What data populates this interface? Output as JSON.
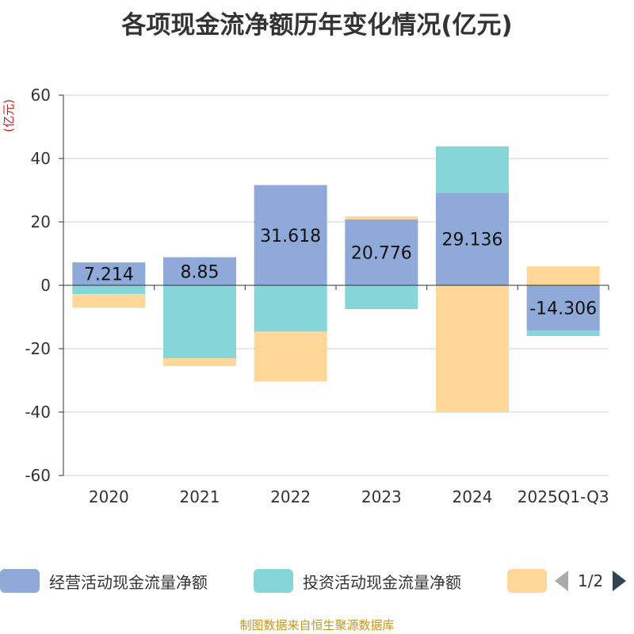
{
  "chart_data": {
    "type": "bar",
    "stacked": true,
    "title": "各项现金流净额历年变化情况(亿元)",
    "ylabel": "(亿元)",
    "ylim": [
      -60,
      60
    ],
    "yticks": [
      60,
      40,
      20,
      0,
      -20,
      -40,
      -60
    ],
    "categories": [
      "2020",
      "2021",
      "2022",
      "2023",
      "2024",
      "2025Q1-Q3"
    ],
    "series": [
      {
        "name": "经营活动现金流量净额",
        "color": "#8fa9d9",
        "values": [
          7.214,
          8.85,
          31.618,
          20.776,
          29.136,
          -14.306
        ],
        "labels": [
          "7.214",
          "8.85",
          "31.618",
          "20.776",
          "29.136",
          "-14.306"
        ]
      },
      {
        "name": "投资活动现金流量净额",
        "color": "#86d5d8",
        "values": [
          -2.8,
          -23.0,
          -14.6,
          -7.5,
          14.7,
          -1.7
        ]
      },
      {
        "name": "",
        "color": "#ffd899",
        "values": [
          -4.3,
          -2.5,
          -15.7,
          1.0,
          -40.0,
          6.0
        ]
      }
    ]
  },
  "legend": {
    "items": [
      {
        "label": "经营活动现金流量净额",
        "color": "#8fa9d9"
      },
      {
        "label": "投资活动现金流量净额",
        "color": "#86d5d8"
      },
      {
        "label": "",
        "color": "#ffd899"
      }
    ],
    "page_text": "1/2"
  },
  "source": "制图数据来自恒生聚源数据库"
}
